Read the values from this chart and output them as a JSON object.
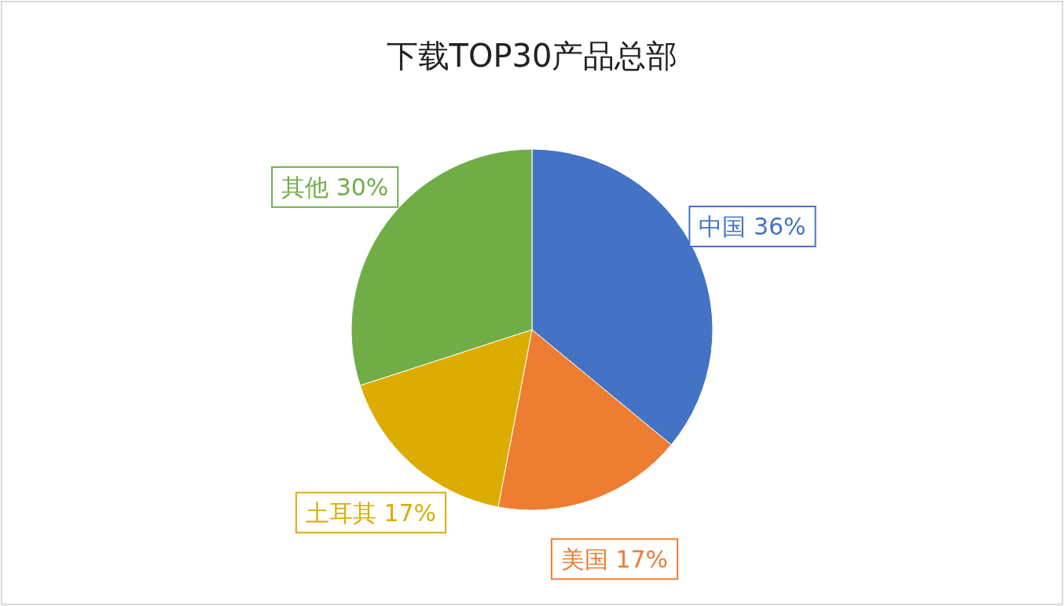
{
  "chart_data": {
    "type": "pie",
    "title": "下载TOP30产品总部",
    "categories": [
      "中国",
      "美国",
      "土耳其",
      "其他"
    ],
    "values": [
      36,
      17,
      17,
      30
    ],
    "colors": [
      "#4472c4",
      "#ed7d31",
      "#dcac00",
      "#70ad47"
    ],
    "value_labels": [
      "36%",
      "17%",
      "17%",
      "30%"
    ]
  }
}
